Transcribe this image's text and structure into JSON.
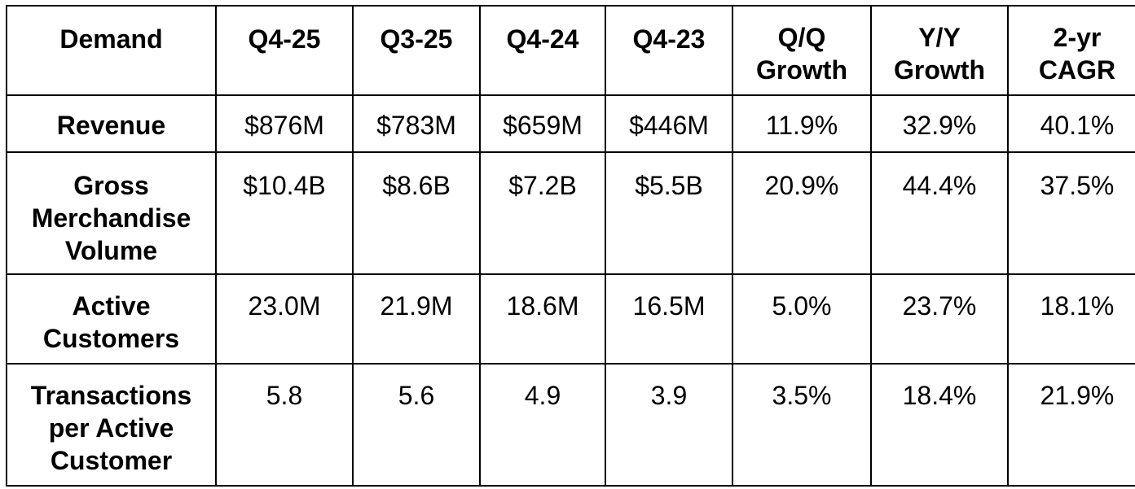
{
  "table": {
    "headers": [
      "Demand",
      "Q4-25",
      "Q3-25",
      "Q4-24",
      "Q4-23",
      "Q/Q\nGrowth",
      "Y/Y\nGrowth",
      "2-yr\nCAGR"
    ],
    "rows": [
      {
        "label": "Revenue",
        "values": [
          "$876M",
          "$783M",
          "$659M",
          "$446M",
          "11.9%",
          "32.9%",
          "40.1%"
        ]
      },
      {
        "label": "Gross\nMerchandise\nVolume",
        "values": [
          "$10.4B",
          "$8.6B",
          "$7.2B",
          "$5.5B",
          "20.9%",
          "44.4%",
          "37.5%"
        ]
      },
      {
        "label": "Active\nCustomers",
        "values": [
          "23.0M",
          "21.9M",
          "18.6M",
          "16.5M",
          "5.0%",
          "23.7%",
          "18.1%"
        ]
      },
      {
        "label": "Transactions\nper Active\nCustomer",
        "values": [
          "5.8",
          "5.6",
          "4.9",
          "3.9",
          "3.5%",
          "18.4%",
          "21.9%"
        ]
      }
    ]
  }
}
